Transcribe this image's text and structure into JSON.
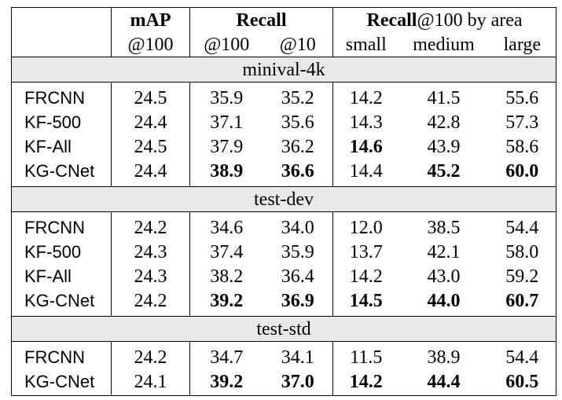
{
  "header": {
    "map_label": "mAP",
    "map_sub": "@100",
    "recall_label": "Recall",
    "recall_sub": [
      "@100",
      "@10"
    ],
    "area_bold": "Recall",
    "area_rest": "@100 by area",
    "area_sub": [
      "small",
      "medium",
      "large"
    ]
  },
  "sections": [
    {
      "title": "minival-4k",
      "rows": [
        {
          "method": "FRCNN",
          "cells": [
            {
              "v": "24.5",
              "b": false
            },
            {
              "v": "35.9",
              "b": false
            },
            {
              "v": "35.2",
              "b": false
            },
            {
              "v": "14.2",
              "b": false
            },
            {
              "v": "41.5",
              "b": false
            },
            {
              "v": "55.6",
              "b": false
            }
          ]
        },
        {
          "method": "KF-500",
          "cells": [
            {
              "v": "24.4",
              "b": false
            },
            {
              "v": "37.1",
              "b": false
            },
            {
              "v": "35.6",
              "b": false
            },
            {
              "v": "14.3",
              "b": false
            },
            {
              "v": "42.8",
              "b": false
            },
            {
              "v": "57.3",
              "b": false
            }
          ]
        },
        {
          "method": "KF-All",
          "cells": [
            {
              "v": "24.5",
              "b": false
            },
            {
              "v": "37.9",
              "b": false
            },
            {
              "v": "36.2",
              "b": false
            },
            {
              "v": "14.6",
              "b": true
            },
            {
              "v": "43.9",
              "b": false
            },
            {
              "v": "58.6",
              "b": false
            }
          ]
        },
        {
          "method": "KG-CNet",
          "cells": [
            {
              "v": "24.4",
              "b": false
            },
            {
              "v": "38.9",
              "b": true
            },
            {
              "v": "36.6",
              "b": true
            },
            {
              "v": "14.4",
              "b": false
            },
            {
              "v": "45.2",
              "b": true
            },
            {
              "v": "60.0",
              "b": true
            }
          ]
        }
      ]
    },
    {
      "title": "test-dev",
      "rows": [
        {
          "method": "FRCNN",
          "cells": [
            {
              "v": "24.2",
              "b": false
            },
            {
              "v": "34.6",
              "b": false
            },
            {
              "v": "34.0",
              "b": false
            },
            {
              "v": "12.0",
              "b": false
            },
            {
              "v": "38.5",
              "b": false
            },
            {
              "v": "54.4",
              "b": false
            }
          ]
        },
        {
          "method": "KF-500",
          "cells": [
            {
              "v": "24.3",
              "b": false
            },
            {
              "v": "37.4",
              "b": false
            },
            {
              "v": "35.9",
              "b": false
            },
            {
              "v": "13.7",
              "b": false
            },
            {
              "v": "42.1",
              "b": false
            },
            {
              "v": "58.0",
              "b": false
            }
          ]
        },
        {
          "method": "KF-All",
          "cells": [
            {
              "v": "24.3",
              "b": false
            },
            {
              "v": "38.2",
              "b": false
            },
            {
              "v": "36.4",
              "b": false
            },
            {
              "v": "14.2",
              "b": false
            },
            {
              "v": "43.0",
              "b": false
            },
            {
              "v": "59.2",
              "b": false
            }
          ]
        },
        {
          "method": "KG-CNet",
          "cells": [
            {
              "v": "24.2",
              "b": false
            },
            {
              "v": "39.2",
              "b": true
            },
            {
              "v": "36.9",
              "b": true
            },
            {
              "v": "14.5",
              "b": true
            },
            {
              "v": "44.0",
              "b": true
            },
            {
              "v": "60.7",
              "b": true
            }
          ]
        }
      ]
    },
    {
      "title": "test-std",
      "rows": [
        {
          "method": "FRCNN",
          "cells": [
            {
              "v": "24.2",
              "b": false
            },
            {
              "v": "34.7",
              "b": false
            },
            {
              "v": "34.1",
              "b": false
            },
            {
              "v": "11.5",
              "b": false
            },
            {
              "v": "38.9",
              "b": false
            },
            {
              "v": "54.4",
              "b": false
            }
          ]
        },
        {
          "method": "KG-CNet",
          "cells": [
            {
              "v": "24.1",
              "b": false
            },
            {
              "v": "39.2",
              "b": true
            },
            {
              "v": "37.0",
              "b": true
            },
            {
              "v": "14.2",
              "b": true
            },
            {
              "v": "44.4",
              "b": true
            },
            {
              "v": "60.5",
              "b": true
            }
          ]
        }
      ]
    }
  ]
}
